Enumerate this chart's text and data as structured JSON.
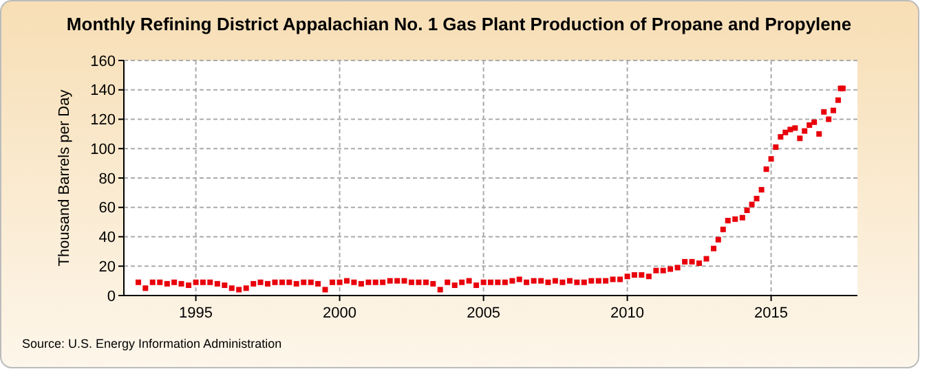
{
  "chart_data": {
    "type": "scatter",
    "title": "Monthly Refining District Appalachian No. 1 Gas Plant Production of Propane and Propylene",
    "ylabel": "Thousand Barrels per Day",
    "annotations": [
      "Source: U.S. Energy Information Administration"
    ],
    "x": [
      "1993-01",
      "1993-04",
      "1993-07",
      "1993-10",
      "1994-01",
      "1994-04",
      "1994-07",
      "1994-10",
      "1995-01",
      "1995-04",
      "1995-07",
      "1995-10",
      "1996-01",
      "1996-04",
      "1996-07",
      "1996-10",
      "1997-01",
      "1997-04",
      "1997-07",
      "1997-10",
      "1998-01",
      "1998-04",
      "1998-07",
      "1998-10",
      "1999-01",
      "1999-04",
      "1999-07",
      "1999-10",
      "2000-01",
      "2000-04",
      "2000-07",
      "2000-10",
      "2001-01",
      "2001-04",
      "2001-07",
      "2001-10",
      "2002-01",
      "2002-04",
      "2002-07",
      "2002-10",
      "2003-01",
      "2003-04",
      "2003-07",
      "2003-10",
      "2004-01",
      "2004-04",
      "2004-07",
      "2004-10",
      "2005-01",
      "2005-04",
      "2005-07",
      "2005-10",
      "2006-01",
      "2006-04",
      "2006-07",
      "2006-10",
      "2007-01",
      "2007-04",
      "2007-07",
      "2007-10",
      "2008-01",
      "2008-04",
      "2008-07",
      "2008-10",
      "2009-01",
      "2009-04",
      "2009-07",
      "2009-10",
      "2010-01",
      "2010-04",
      "2010-07",
      "2010-10",
      "2011-01",
      "2011-04",
      "2011-07",
      "2011-10",
      "2012-01",
      "2012-04",
      "2012-07",
      "2012-10",
      "2013-01",
      "2013-03",
      "2013-05",
      "2013-07",
      "2013-10",
      "2014-01",
      "2014-03",
      "2014-05",
      "2014-07",
      "2014-09",
      "2014-11",
      "2015-01",
      "2015-03",
      "2015-05",
      "2015-07",
      "2015-09",
      "2015-11",
      "2016-01",
      "2016-03",
      "2016-05",
      "2016-07",
      "2016-09",
      "2016-11",
      "2017-01",
      "2017-03",
      "2017-05",
      "2017-06",
      "2017-07"
    ],
    "series": [
      {
        "color": "#e8000b",
        "values": [
          9,
          5,
          9,
          9,
          8,
          9,
          8,
          7,
          9,
          9,
          9,
          8,
          7,
          5,
          4,
          5,
          8,
          9,
          8,
          9,
          9,
          9,
          8,
          9,
          9,
          8,
          4,
          9,
          9,
          10,
          9,
          8,
          9,
          9,
          9,
          10,
          10,
          10,
          9,
          9,
          9,
          8,
          4,
          9,
          7,
          9,
          10,
          7,
          9,
          9,
          9,
          9,
          10,
          11,
          9,
          10,
          10,
          9,
          10,
          9,
          10,
          9,
          9,
          10,
          10,
          10,
          11,
          11,
          13,
          14,
          14,
          13,
          17,
          17,
          18,
          19,
          23,
          23,
          22,
          25,
          32,
          38,
          45,
          51,
          52,
          53,
          58,
          62,
          66,
          72,
          86,
          93,
          101,
          108,
          111,
          113,
          114,
          107,
          112,
          116,
          118,
          110,
          125,
          120,
          126,
          133,
          141,
          141
        ]
      }
    ],
    "xlim": [
      "1992-07",
      "2018-01"
    ],
    "xticks": [
      "1995",
      "2000",
      "2005",
      "2010",
      "2015"
    ],
    "ylim": [
      0,
      160
    ],
    "yticks": [
      0,
      20,
      40,
      60,
      80,
      100,
      120,
      140,
      160
    ],
    "grid": true,
    "marker": "square"
  }
}
